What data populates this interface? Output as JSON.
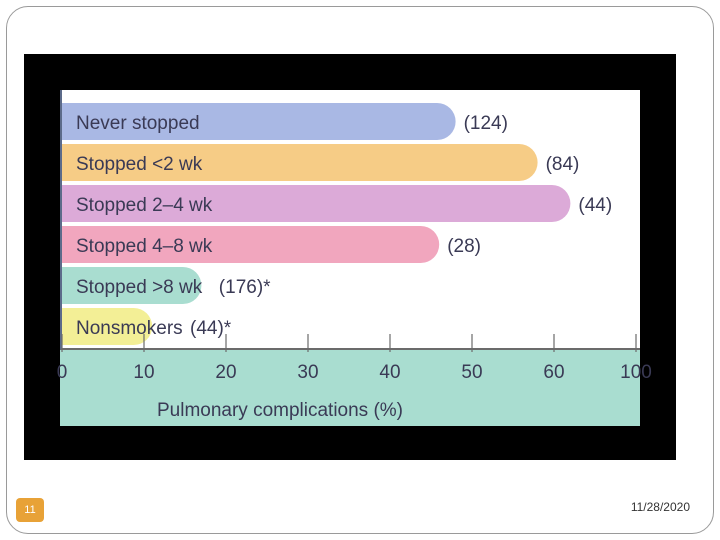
{
  "slide": {
    "page_number": "11",
    "date": "11/28/2020"
  },
  "colors": {
    "plot_background": "#ffffff",
    "axis_band": "#a9ddd0",
    "bar_colors": [
      "#a9b8e4",
      "#f6cc86",
      "#dcaad8",
      "#f1a6be",
      "#a9ddd0",
      "#f3ef96"
    ]
  },
  "chart_data": {
    "type": "bar",
    "orientation": "horizontal",
    "categories": [
      "Never stopped",
      "Stopped <2 wk",
      "Stopped 2–4 wk",
      "Stopped 4–8 wk",
      "Stopped >8 wk",
      "Nonsmokers"
    ],
    "values": [
      48,
      58,
      62,
      46,
      17,
      11
    ],
    "counts": [
      "(124)",
      "(84)",
      "(44)",
      "(28)",
      "(176)*",
      "(44)*"
    ],
    "xlabel": "Pulmonary complications (%)",
    "xlim": [
      0,
      100
    ],
    "xticks": [
      "0",
      "10",
      "20",
      "30",
      "40",
      "50",
      "60",
      "100"
    ],
    "xtick_values": [
      0,
      10,
      20,
      30,
      40,
      50,
      60,
      70
    ],
    "grid": false
  }
}
